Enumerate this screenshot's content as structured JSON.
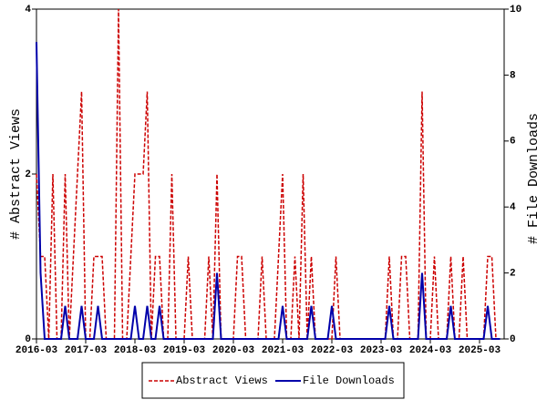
{
  "chart_data": {
    "type": "line",
    "x": [
      "2016-03",
      "2016-04",
      "2016-05",
      "2016-06",
      "2016-07",
      "2016-08",
      "2016-09",
      "2016-10",
      "2016-11",
      "2016-12",
      "2017-01",
      "2017-02",
      "2017-03",
      "2017-04",
      "2017-05",
      "2017-06",
      "2017-07",
      "2017-08",
      "2017-09",
      "2017-10",
      "2017-11",
      "2017-12",
      "2018-01",
      "2018-02",
      "2018-03",
      "2018-04",
      "2018-05",
      "2018-06",
      "2018-07",
      "2018-08",
      "2018-09",
      "2018-10",
      "2018-11",
      "2018-12",
      "2019-01",
      "2019-02",
      "2019-03",
      "2019-04",
      "2019-05",
      "2019-06",
      "2019-07",
      "2019-08",
      "2019-09",
      "2019-10",
      "2019-11",
      "2019-12",
      "2020-01",
      "2020-02",
      "2020-03",
      "2020-04",
      "2020-05",
      "2020-06",
      "2020-07",
      "2020-08",
      "2020-09",
      "2020-10",
      "2020-11",
      "2020-12",
      "2021-01",
      "2021-02",
      "2021-03",
      "2021-04",
      "2021-05",
      "2021-06",
      "2021-07",
      "2021-08",
      "2021-09",
      "2021-10",
      "2021-11",
      "2021-12",
      "2022-01",
      "2022-02",
      "2022-03",
      "2022-04",
      "2022-05",
      "2022-06",
      "2022-07",
      "2022-08",
      "2022-09",
      "2022-10",
      "2022-11",
      "2022-12",
      "2023-01",
      "2023-02",
      "2023-03",
      "2023-04",
      "2023-05",
      "2023-06",
      "2023-07",
      "2023-08",
      "2023-09",
      "2023-10",
      "2023-11",
      "2023-12",
      "2024-01",
      "2024-02",
      "2024-03",
      "2024-04",
      "2024-05",
      "2024-06",
      "2024-07",
      "2024-08",
      "2024-09",
      "2024-10",
      "2024-11",
      "2024-12",
      "2025-01",
      "2025-02",
      "2025-03",
      "2025-04",
      "2025-05",
      "2025-06",
      "2025-07",
      "2025-08"
    ],
    "xticks": [
      "2016-03",
      "2017-03",
      "2018-03",
      "2019-03",
      "2020-03",
      "2021-03",
      "2022-03",
      "2023-03",
      "2024-03",
      "2025-03"
    ],
    "ylabel": "# Abstract Views",
    "y2label": "# File Downloads",
    "ylim": [
      0,
      4
    ],
    "yticks": [
      0,
      2,
      4
    ],
    "y2lim": [
      0,
      10
    ],
    "y2ticks": [
      0,
      2,
      4,
      6,
      8,
      10
    ],
    "legend": "bottom",
    "series": [
      {
        "name": "Abstract Views",
        "color": "#cc0000",
        "dashed": true,
        "values": [
          2,
          1,
          1,
          0,
          2,
          0,
          0,
          2,
          0,
          1,
          2,
          3,
          0,
          0,
          1,
          1,
          1,
          0,
          0,
          0,
          4,
          0,
          0,
          1,
          2,
          2,
          2,
          3,
          0,
          1,
          1,
          0,
          0,
          2,
          0,
          0,
          0,
          1,
          0,
          0,
          0,
          0,
          1,
          0,
          2,
          0,
          0,
          0,
          0,
          1,
          1,
          0,
          0,
          0,
          0,
          1,
          0,
          0,
          0,
          1,
          2,
          0,
          0,
          1,
          0,
          2,
          0,
          1,
          0,
          0,
          0,
          0,
          0,
          1,
          0,
          0,
          0,
          0,
          0,
          0,
          0,
          0,
          0,
          0,
          0,
          0,
          1,
          0,
          0,
          1,
          1,
          0,
          0,
          0,
          3,
          0,
          0,
          1,
          0,
          0,
          0,
          1,
          0,
          0,
          1,
          0,
          0,
          0,
          0,
          0,
          1,
          1,
          0,
          0
        ]
      },
      {
        "name": "File Downloads",
        "color": "#0000aa",
        "axis": "y2",
        "values": [
          9,
          2,
          0,
          0,
          0,
          0,
          0,
          1,
          0,
          0,
          0,
          1,
          0,
          0,
          0,
          1,
          0,
          0,
          0,
          0,
          0,
          0,
          0,
          0,
          1,
          0,
          0,
          1,
          0,
          0,
          1,
          0,
          0,
          0,
          0,
          0,
          0,
          0,
          0,
          0,
          0,
          0,
          0,
          0,
          2,
          0,
          0,
          0,
          0,
          0,
          0,
          0,
          0,
          0,
          0,
          0,
          0,
          0,
          0,
          0,
          1,
          0,
          0,
          0,
          0,
          0,
          0,
          1,
          0,
          0,
          0,
          0,
          1,
          0,
          0,
          0,
          0,
          0,
          0,
          0,
          0,
          0,
          0,
          0,
          0,
          0,
          1,
          0,
          0,
          0,
          0,
          0,
          0,
          0,
          2,
          0,
          0,
          0,
          0,
          0,
          0,
          1,
          0,
          0,
          0,
          0,
          0,
          0,
          0,
          0,
          1,
          0,
          0,
          0
        ]
      }
    ]
  }
}
